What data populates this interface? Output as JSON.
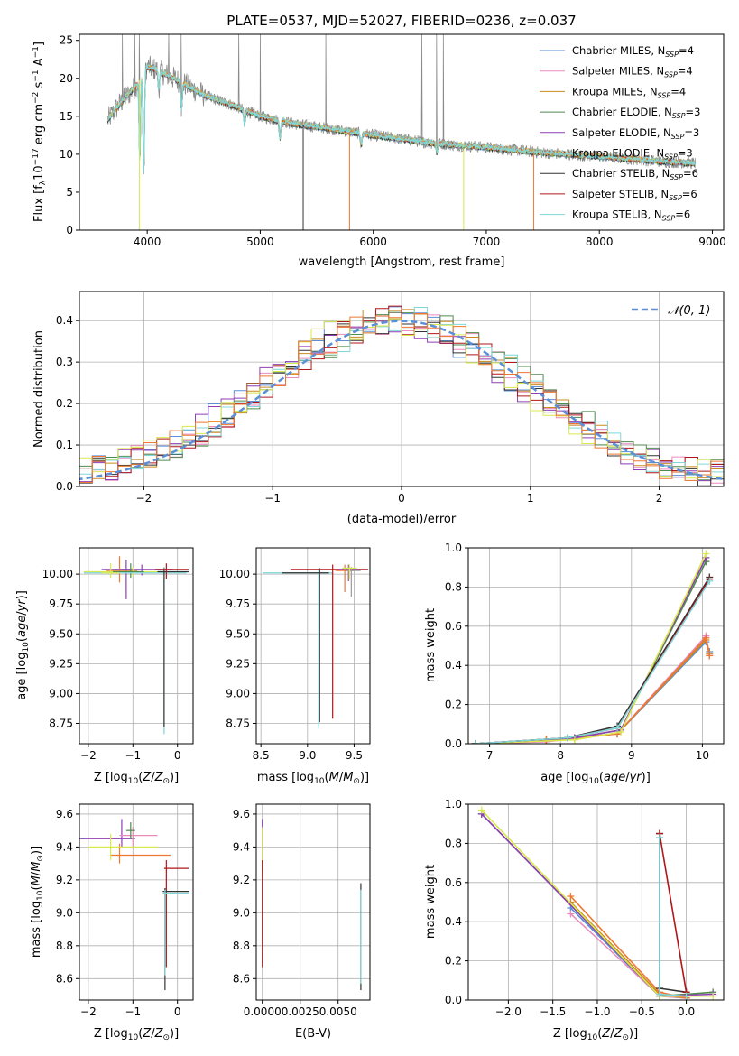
{
  "figure_title": "PLATE=0537, MJD=52027, FIBERID=0236, z=0.037",
  "colors": [
    "#5b8fd8",
    "#e98bbd",
    "#c98a1f",
    "#4f8a4f",
    "#8e3fb5",
    "#9a9a9a",
    "#333333",
    "#b0171b",
    "#7fd7d9",
    "#d9e84d",
    "#ee7733"
  ],
  "chart_data": [
    {
      "type": "line",
      "title": "PLATE=0537, MJD=52027, FIBERID=0236, z=0.037",
      "xlabel": "wavelength [Angstrom, rest frame]",
      "ylabel": "Flux [f_λ 10^-17 erg cm^-2 s^-1 A^-1]",
      "xlim": [
        3400,
        9100
      ],
      "ylim": [
        0,
        25.8
      ],
      "xticks": [
        4000,
        5000,
        6000,
        7000,
        8000,
        9000
      ],
      "yticks": [
        0,
        5,
        10,
        15,
        20,
        25
      ],
      "grid": false,
      "legend_position": "top-right",
      "series": [
        {
          "name": "Chabrier MILES, N_SSP=4",
          "color": "#5b8fd8"
        },
        {
          "name": "Salpeter MILES, N_SSP=4",
          "color": "#e98bbd"
        },
        {
          "name": "Kroupa MILES, N_SSP=4",
          "color": "#c98a1f"
        },
        {
          "name": "Chabrier ELODIE, N_SSP=3",
          "color": "#4f8a4f"
        },
        {
          "name": "Salpeter ELODIE, N_SSP=3",
          "color": "#8e3fb5"
        },
        {
          "name": "Kroupa ELODIE, N_SSP=3",
          "color": "#9a9a9a"
        },
        {
          "name": "Chabrier STELIB, N_SSP=6",
          "color": "#333333"
        },
        {
          "name": "Salpeter STELIB, N_SSP=6",
          "color": "#b0171b"
        },
        {
          "name": "Kroupa STELIB, N_SSP=6",
          "color": "#7fd7d9"
        }
      ],
      "continuum": {
        "x": [
          3650,
          3750,
          3900,
          4000,
          4100,
          4300,
          4500,
          4800,
          5000,
          5300,
          5600,
          6000,
          6500,
          7000,
          7500,
          8000,
          8500,
          8850
        ],
        "y": [
          14.5,
          16.5,
          19.0,
          21.5,
          21.0,
          19.5,
          17.8,
          16.2,
          15.0,
          14.0,
          13.4,
          12.5,
          11.5,
          10.9,
          10.2,
          9.7,
          9.1,
          8.8
        ]
      },
      "absorption_lines": [
        {
          "x": 3934,
          "depth": 0.55
        },
        {
          "x": 3969,
          "depth": 0.65
        },
        {
          "x": 4102,
          "depth": 0.12
        },
        {
          "x": 4304,
          "depth": 0.18
        },
        {
          "x": 4861,
          "depth": 0.12
        },
        {
          "x": 5175,
          "depth": 0.16
        },
        {
          "x": 5893,
          "depth": 0.12
        },
        {
          "x": 6563,
          "depth": 0.1
        }
      ],
      "observed_spikes": [
        {
          "x": 3780,
          "y": 25.8
        },
        {
          "x": 3890,
          "y": 25.8
        },
        {
          "x": 3930,
          "y": 25.8
        },
        {
          "x": 4190,
          "y": 25.8
        },
        {
          "x": 4300,
          "y": 25.8
        },
        {
          "x": 4810,
          "y": 25.8
        },
        {
          "x": 5000,
          "y": 25.8
        },
        {
          "x": 5580,
          "y": 25.8
        },
        {
          "x": 6430,
          "y": 25.8
        },
        {
          "x": 6560,
          "y": 25.8
        },
        {
          "x": 6620,
          "y": 25.8
        }
      ],
      "model_dips": [
        {
          "x": 3930,
          "y": 0,
          "color": "#d9e84d"
        },
        {
          "x": 5380,
          "y": 0,
          "color": "#333333"
        },
        {
          "x": 5790,
          "y": 0,
          "color": "#ee7733"
        },
        {
          "x": 6800,
          "y": 0,
          "color": "#d9e84d"
        },
        {
          "x": 7420,
          "y": 0,
          "color": "#ee7733"
        }
      ]
    },
    {
      "type": "histogram",
      "xlabel": "(data-model)/error",
      "ylabel": "Normed distribution",
      "xlim": [
        -2.5,
        2.5
      ],
      "ylim": [
        0,
        0.47
      ],
      "xticks": [
        -2,
        -1,
        0,
        1,
        2
      ],
      "yticks": [
        0.0,
        0.1,
        0.2,
        0.3,
        0.4
      ],
      "grid": true,
      "legend_position": "top-right",
      "legend_label": "N(0,1)",
      "bin_width": 0.1,
      "reference_curve": {
        "type": "normal",
        "mean": 0,
        "sigma": 1,
        "color": "#5b8fd8",
        "style": "dashed"
      }
    },
    {
      "type": "scatter",
      "xlabel": "Z [log10(Z/Z_sun)]",
      "ylabel": "age  [log10(age/yr)]",
      "xlim": [
        -2.2,
        0.35
      ],
      "ylim": [
        8.58,
        10.22
      ],
      "xticks": [
        -2,
        -1,
        0
      ],
      "yticks": [
        8.75,
        9.0,
        9.25,
        9.5,
        9.75,
        10.0
      ],
      "grid": true,
      "points": [
        {
          "x": -1.15,
          "y": 10.04,
          "xerr": [
            0.25,
            0.15
          ],
          "yerr": [
            0.25,
            0.08
          ],
          "color": "#8e3fb5"
        },
        {
          "x": -0.8,
          "y": 10.04,
          "xerr": [
            0.9,
            0.7
          ],
          "yerr": [
            0.05,
            0.04
          ],
          "color": "#8e3fb5"
        },
        {
          "x": -1.3,
          "y": 10.03,
          "xerr": [
            0.3,
            0.4
          ],
          "yerr": [
            0.1,
            0.12
          ],
          "color": "#ee7733"
        },
        {
          "x": -1.0,
          "y": 10.02,
          "xerr": [
            1.1,
            0.7
          ],
          "yerr": [
            0.04,
            0.04
          ],
          "color": "#d9e84d"
        },
        {
          "x": -1.05,
          "y": 10.02,
          "xerr": [
            0.4,
            0.3
          ],
          "yerr": [
            0.05,
            0.07
          ],
          "color": "#4f8a4f"
        },
        {
          "x": -0.3,
          "y": 10.01,
          "xerr": [
            1.8,
            0.5
          ],
          "yerr": [
            1.35,
            0.05
          ],
          "color": "#7fd7d9"
        },
        {
          "x": -0.3,
          "y": 10.02,
          "xerr": [
            0.15,
            0.55
          ],
          "yerr": [
            1.3,
            0.03
          ],
          "color": "#333333"
        },
        {
          "x": -0.25,
          "y": 10.04,
          "xerr": [
            0.25,
            0.5
          ],
          "yerr": [
            0.08,
            0.05
          ],
          "color": "#b0171b"
        },
        {
          "x": -1.5,
          "y": 10.01,
          "xerr": [
            0.2,
            0.2
          ],
          "yerr": [
            0.04,
            0.08
          ],
          "color": "#d9e84d"
        }
      ]
    },
    {
      "type": "scatter",
      "xlabel": "mass [log10(M/M_sun)]",
      "xlim": [
        8.45,
        9.67
      ],
      "ylim": [
        8.58,
        10.22
      ],
      "xticks": [
        8.5,
        9.0,
        9.5
      ],
      "yticks": [
        8.75,
        9.0,
        9.25,
        9.5,
        9.75,
        10.0
      ],
      "grid": true,
      "points": [
        {
          "x": 9.12,
          "y": 10.01,
          "xerr": [
            0.6,
            0.15
          ],
          "yerr": [
            1.3,
            0.04
          ],
          "color": "#7fd7d9"
        },
        {
          "x": 9.13,
          "y": 10.01,
          "xerr": [
            0.4,
            0.1
          ],
          "yerr": [
            1.25,
            0.04
          ],
          "color": "#333333"
        },
        {
          "x": 9.27,
          "y": 10.04,
          "xerr": [
            0.45,
            0.38
          ],
          "yerr": [
            1.25,
            0.04
          ],
          "color": "#b0171b"
        },
        {
          "x": 9.44,
          "y": 10.04,
          "xerr": [
            0.1,
            0.1
          ],
          "yerr": [
            0.1,
            0.04
          ],
          "color": "#8e3fb5"
        },
        {
          "x": 9.4,
          "y": 10.03,
          "xerr": [
            0.1,
            0.1
          ],
          "yerr": [
            0.18,
            0.05
          ],
          "color": "#ee7733"
        },
        {
          "x": 9.47,
          "y": 10.03,
          "xerr": [
            0.05,
            0.1
          ],
          "yerr": [
            0.22,
            0.03
          ],
          "color": "#9a9a9a"
        },
        {
          "x": 9.45,
          "y": 10.05,
          "xerr": [
            0.08,
            0.08
          ],
          "yerr": [
            0.1,
            0.03
          ],
          "color": "#d9e84d"
        }
      ]
    },
    {
      "type": "line",
      "xlabel": "age  [log10(age/yr)]",
      "ylabel": "mass weight",
      "xlim": [
        6.7,
        10.3
      ],
      "ylim": [
        0,
        1.0
      ],
      "xticks": [
        7,
        8,
        9,
        10
      ],
      "yticks": [
        0.0,
        0.2,
        0.4,
        0.6,
        0.8,
        1.0
      ],
      "grid": true,
      "series": [
        {
          "color": "#5b8fd8",
          "x": [
            6.8,
            7.8,
            8.8,
            10.05,
            10.1
          ],
          "y": [
            0.0,
            0.02,
            0.05,
            0.52,
            0.47
          ]
        },
        {
          "color": "#e98bbd",
          "x": [
            6.8,
            7.8,
            8.8,
            10.05,
            10.1
          ],
          "y": [
            0.0,
            0.01,
            0.05,
            0.55,
            0.45
          ]
        },
        {
          "color": "#c98a1f",
          "x": [
            6.8,
            7.8,
            8.8,
            10.05,
            10.1
          ],
          "y": [
            0.0,
            0.02,
            0.05,
            0.53,
            0.46
          ]
        },
        {
          "color": "#ee7733",
          "x": [
            6.8,
            7.8,
            8.8,
            10.05,
            10.1
          ],
          "y": [
            0.0,
            0.02,
            0.05,
            0.54,
            0.45
          ]
        },
        {
          "color": "#4f8a4f",
          "x": [
            6.8,
            8.2,
            8.85,
            10.05
          ],
          "y": [
            0.0,
            0.03,
            0.07,
            0.93
          ]
        },
        {
          "color": "#8e3fb5",
          "x": [
            6.8,
            8.2,
            8.85,
            10.05
          ],
          "y": [
            0.0,
            0.03,
            0.07,
            0.95
          ]
        },
        {
          "color": "#d9e84d",
          "x": [
            6.8,
            8.2,
            8.85,
            10.05
          ],
          "y": [
            0.0,
            0.02,
            0.06,
            0.97
          ]
        },
        {
          "color": "#333333",
          "x": [
            6.8,
            8.1,
            8.8,
            10.1
          ],
          "y": [
            0.0,
            0.03,
            0.09,
            0.85
          ]
        },
        {
          "color": "#b0171b",
          "x": [
            6.8,
            8.1,
            8.8,
            10.1
          ],
          "y": [
            0.0,
            0.03,
            0.08,
            0.84
          ]
        },
        {
          "color": "#7fd7d9",
          "x": [
            6.8,
            8.1,
            8.8,
            10.1
          ],
          "y": [
            0.0,
            0.03,
            0.08,
            0.83
          ]
        }
      ]
    },
    {
      "type": "scatter",
      "xlabel": "Z [log10(Z/Z_sun)]",
      "ylabel": "mass [log10(M/M_sun)]",
      "xlim": [
        -2.2,
        0.35
      ],
      "ylim": [
        8.47,
        9.66
      ],
      "xticks": [
        -2,
        -1,
        0
      ],
      "yticks": [
        8.6,
        8.8,
        9.0,
        9.2,
        9.4,
        9.6
      ],
      "grid": true,
      "points": [
        {
          "x": -1.25,
          "y": 9.45,
          "xerr": [
            0.95,
            0.3
          ],
          "yerr": [
            0.05,
            0.12
          ],
          "color": "#8e3fb5"
        },
        {
          "x": -1.0,
          "y": 9.47,
          "xerr": [
            0.3,
            0.55
          ],
          "yerr": [
            0.08,
            0.05
          ],
          "color": "#e98bbd"
        },
        {
          "x": -1.3,
          "y": 9.35,
          "xerr": [
            0.2,
            1.15
          ],
          "yerr": [
            0.05,
            0.07
          ],
          "color": "#ee7733"
        },
        {
          "x": -1.5,
          "y": 9.4,
          "xerr": [
            0.5,
            1.05
          ],
          "yerr": [
            0.08,
            0.08
          ],
          "color": "#d9e84d"
        },
        {
          "x": -1.05,
          "y": 9.5,
          "xerr": [
            0.1,
            0.1
          ],
          "yerr": [
            0.05,
            0.05
          ],
          "color": "#4f8a4f"
        },
        {
          "x": -0.25,
          "y": 9.27,
          "xerr": [
            0.05,
            0.5
          ],
          "yerr": [
            0.6,
            0.05
          ],
          "color": "#b0171b"
        },
        {
          "x": -0.28,
          "y": 9.13,
          "xerr": [
            0.05,
            0.55
          ],
          "yerr": [
            0.6,
            0.02
          ],
          "color": "#333333"
        },
        {
          "x": -0.28,
          "y": 9.12,
          "xerr": [
            0.05,
            0.55
          ],
          "yerr": [
            0.5,
            0.02
          ],
          "color": "#7fd7d9"
        }
      ]
    },
    {
      "type": "scatter",
      "xlabel": "E(B-V)",
      "xlim": [
        -0.0004,
        0.0071
      ],
      "ylim": [
        8.47,
        9.66
      ],
      "xticks": [
        0.0,
        0.0025,
        0.005
      ],
      "yticks": [
        8.6,
        8.8,
        9.0,
        9.2,
        9.4,
        9.6
      ],
      "grid": true,
      "points": [
        {
          "x": 0.0,
          "y": 9.45,
          "xerr": [
            0,
            0
          ],
          "yerr": [
            0.2,
            0.12
          ],
          "color": "#8e3fb5"
        },
        {
          "x": 0.0,
          "y": 9.4,
          "xerr": [
            0,
            0
          ],
          "yerr": [
            0.15,
            0.12
          ],
          "color": "#d9e84d"
        },
        {
          "x": 0.0,
          "y": 9.27,
          "xerr": [
            0,
            0
          ],
          "yerr": [
            0.6,
            0.05
          ],
          "color": "#b0171b"
        },
        {
          "x": 0.0065,
          "y": 9.13,
          "xerr": [
            0,
            0
          ],
          "yerr": [
            0.6,
            0.05
          ],
          "color": "#333333"
        },
        {
          "x": 0.0065,
          "y": 9.12,
          "xerr": [
            0,
            0
          ],
          "yerr": [
            0.55,
            0.02
          ],
          "color": "#7fd7d9"
        }
      ]
    },
    {
      "type": "line",
      "xlabel": "Z [log10(Z/Z_sun)]",
      "ylabel": "mass weight",
      "xlim": [
        -2.45,
        0.42
      ],
      "ylim": [
        0,
        1.0
      ],
      "xticks": [
        -2.0,
        -1.5,
        -1.0,
        -0.5,
        0.0
      ],
      "yticks": [
        0.0,
        0.2,
        0.4,
        0.6,
        0.8,
        1.0
      ],
      "grid": true,
      "series": [
        {
          "color": "#5b8fd8",
          "x": [
            -1.3,
            -0.3,
            0.0
          ],
          "y": [
            0.47,
            0.02,
            0.01
          ]
        },
        {
          "color": "#e98bbd",
          "x": [
            -1.3,
            -0.3,
            0.0
          ],
          "y": [
            0.44,
            0.02,
            0.01
          ]
        },
        {
          "color": "#c98a1f",
          "x": [
            -1.3,
            -0.3,
            0.0
          ],
          "y": [
            0.5,
            0.03,
            0.01
          ]
        },
        {
          "color": "#ee7733",
          "x": [
            -1.3,
            -0.3,
            0.0
          ],
          "y": [
            0.53,
            0.04,
            0.01
          ]
        },
        {
          "color": "#4f8a4f",
          "x": [
            -2.3,
            -0.3,
            0.3
          ],
          "y": [
            0.95,
            0.02,
            0.04
          ]
        },
        {
          "color": "#8e3fb5",
          "x": [
            -2.3,
            -0.3,
            0.3
          ],
          "y": [
            0.95,
            0.02,
            0.03
          ]
        },
        {
          "color": "#d9e84d",
          "x": [
            -2.3,
            -0.3,
            0.3
          ],
          "y": [
            0.97,
            0.02,
            0.02
          ]
        },
        {
          "color": "#333333",
          "x": [
            -0.3,
            -0.3,
            0.0
          ],
          "y": [
            0.85,
            0.06,
            0.04
          ]
        },
        {
          "color": "#b0171b",
          "x": [
            -0.3,
            0.0
          ],
          "y": [
            0.85,
            0.04
          ]
        },
        {
          "color": "#7fd7d9",
          "x": [
            -0.3,
            -0.3,
            0.0
          ],
          "y": [
            0.83,
            0.03,
            0.02
          ]
        }
      ]
    }
  ]
}
